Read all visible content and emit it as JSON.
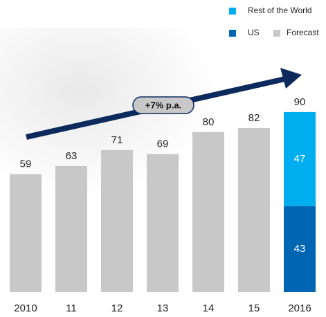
{
  "chart_data": {
    "type": "bar",
    "stacked": true,
    "annotation": "+7% p.a.",
    "categories": [
      "2010",
      "11",
      "12",
      "13",
      "14",
      "15",
      "2016"
    ],
    "series": [
      {
        "name": "Forecast",
        "color": "#c8c8c8",
        "values": [
          59,
          63,
          71,
          69,
          80,
          82,
          null
        ]
      },
      {
        "name": "US",
        "color": "#0066b3",
        "values": [
          null,
          null,
          null,
          null,
          null,
          null,
          43
        ]
      },
      {
        "name": "Rest of the World",
        "color": "#00aeef",
        "values": [
          null,
          null,
          null,
          null,
          null,
          null,
          47
        ]
      }
    ],
    "stack_total": 90
  }
}
